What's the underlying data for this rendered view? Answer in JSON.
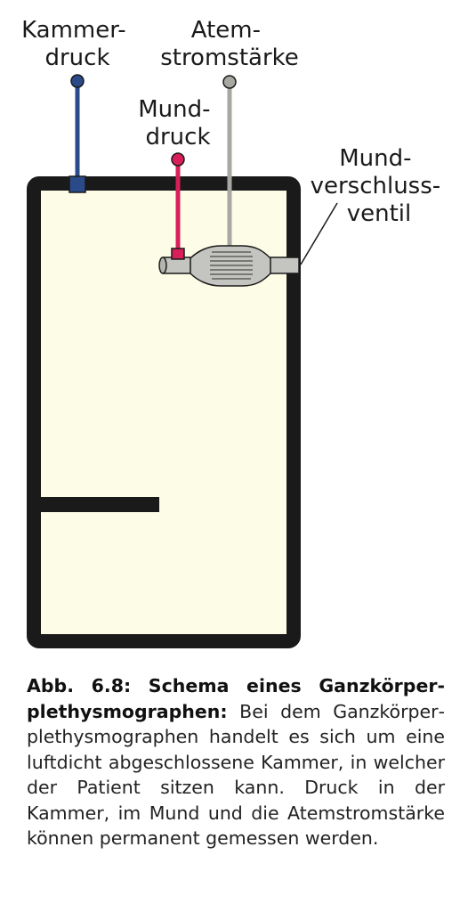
{
  "labels": {
    "kammerdruck": [
      "Kammer-",
      "druck"
    ],
    "atemstromstaerke": [
      "Atem-",
      "stromstärke"
    ],
    "munddruck": [
      "Mund-",
      "druck"
    ],
    "mundverschlussventil": [
      "Mund-",
      "verschluss-",
      "ventil"
    ]
  },
  "colors": {
    "chamber_wall": "#1a1a1a",
    "chamber_fill": "#fdfce6",
    "kammerdruck_sensor": "#2b4a8a",
    "munddruck_sensor": "#d81f5a",
    "atemstrom_sensor": "#a8a8a3",
    "valve_tube": "#c4c4c0"
  },
  "caption": {
    "figure_number": "Abb. 6.8: Schema eines Ganzkörper­plethysmographen:",
    "text": " Bei dem Ganzkörper­plethysmographen handelt es sich um eine luftdicht abgeschlossene Kammer, in welcher der Patient sitzen kann. Druck in der Kammer, im Mund und die Atem­stromstärke können permanent gemessen werden."
  }
}
